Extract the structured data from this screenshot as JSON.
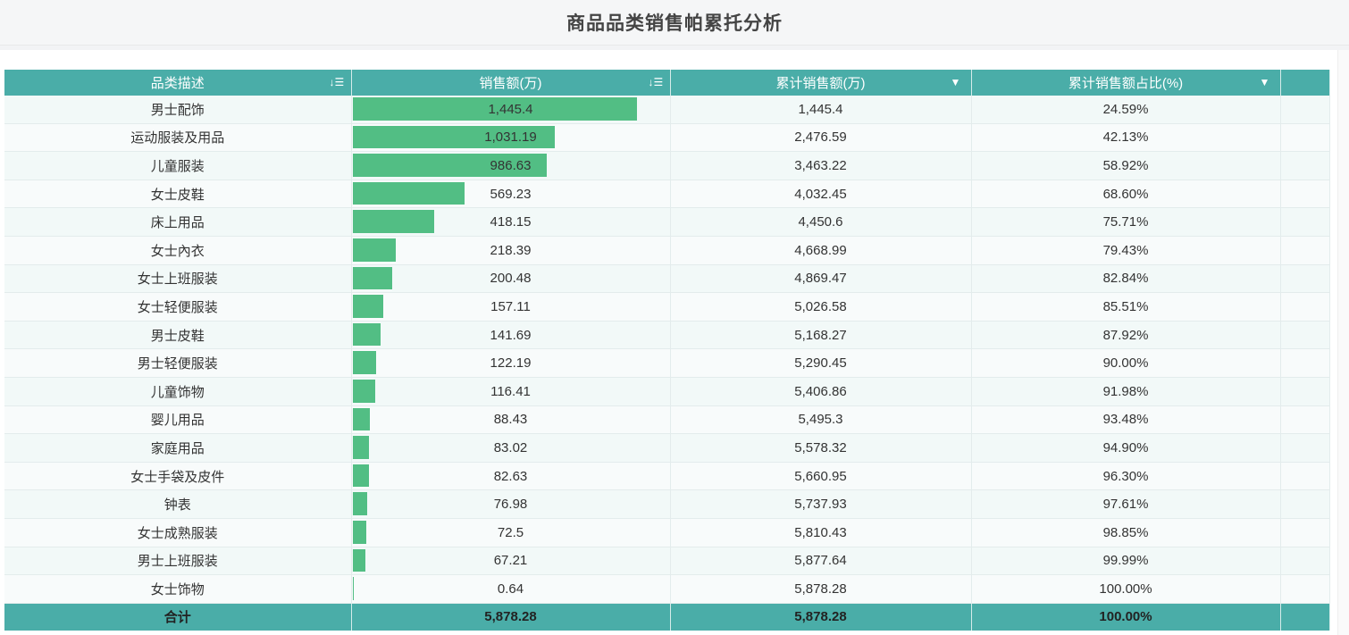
{
  "title": "商品品类销售帕累托分析",
  "columns": [
    {
      "label": "品类描述",
      "icon": "sort-desc-icon",
      "icon_glyph": "↓☰"
    },
    {
      "label": "销售额(万)",
      "icon": "sort-desc-icon",
      "icon_glyph": "↓☰"
    },
    {
      "label": "累计销售额(万)",
      "icon": "dropdown-caret-icon",
      "icon_glyph": "▼"
    },
    {
      "label": "累计销售额占比(%)",
      "icon": "dropdown-caret-icon",
      "icon_glyph": "▼"
    }
  ],
  "bar_color": "#52be84",
  "header_color": "#4aada8",
  "bar_max": 1445.4,
  "rows": [
    {
      "category": "男士配饰",
      "sales": "1,445.4",
      "sales_value": 1445.4,
      "cum": "1,445.4",
      "pct": "24.59%"
    },
    {
      "category": "运动服装及用品",
      "sales": "1,031.19",
      "sales_value": 1031.19,
      "cum": "2,476.59",
      "pct": "42.13%"
    },
    {
      "category": "儿童服装",
      "sales": "986.63",
      "sales_value": 986.63,
      "cum": "3,463.22",
      "pct": "58.92%"
    },
    {
      "category": "女士皮鞋",
      "sales": "569.23",
      "sales_value": 569.23,
      "cum": "4,032.45",
      "pct": "68.60%"
    },
    {
      "category": "床上用品",
      "sales": "418.15",
      "sales_value": 418.15,
      "cum": "4,450.6",
      "pct": "75.71%"
    },
    {
      "category": "女士內衣",
      "sales": "218.39",
      "sales_value": 218.39,
      "cum": "4,668.99",
      "pct": "79.43%"
    },
    {
      "category": "女士上班服装",
      "sales": "200.48",
      "sales_value": 200.48,
      "cum": "4,869.47",
      "pct": "82.84%"
    },
    {
      "category": "女士轻便服装",
      "sales": "157.11",
      "sales_value": 157.11,
      "cum": "5,026.58",
      "pct": "85.51%"
    },
    {
      "category": "男士皮鞋",
      "sales": "141.69",
      "sales_value": 141.69,
      "cum": "5,168.27",
      "pct": "87.92%"
    },
    {
      "category": "男士轻便服装",
      "sales": "122.19",
      "sales_value": 122.19,
      "cum": "5,290.45",
      "pct": "90.00%"
    },
    {
      "category": "儿童饰物",
      "sales": "116.41",
      "sales_value": 116.41,
      "cum": "5,406.86",
      "pct": "91.98%"
    },
    {
      "category": "婴儿用品",
      "sales": "88.43",
      "sales_value": 88.43,
      "cum": "5,495.3",
      "pct": "93.48%"
    },
    {
      "category": "家庭用品",
      "sales": "83.02",
      "sales_value": 83.02,
      "cum": "5,578.32",
      "pct": "94.90%"
    },
    {
      "category": "女士手袋及皮件",
      "sales": "82.63",
      "sales_value": 82.63,
      "cum": "5,660.95",
      "pct": "96.30%"
    },
    {
      "category": "钟表",
      "sales": "76.98",
      "sales_value": 76.98,
      "cum": "5,737.93",
      "pct": "97.61%"
    },
    {
      "category": "女士成熟服装",
      "sales": "72.5",
      "sales_value": 72.5,
      "cum": "5,810.43",
      "pct": "98.85%"
    },
    {
      "category": "男士上班服装",
      "sales": "67.21",
      "sales_value": 67.21,
      "cum": "5,877.64",
      "pct": "99.99%"
    },
    {
      "category": "女士饰物",
      "sales": "0.64",
      "sales_value": 0.64,
      "cum": "5,878.28",
      "pct": "100.00%"
    }
  ],
  "total": {
    "label": "合计",
    "sales": "5,878.28",
    "cum": "5,878.28",
    "pct": "100.00%"
  }
}
